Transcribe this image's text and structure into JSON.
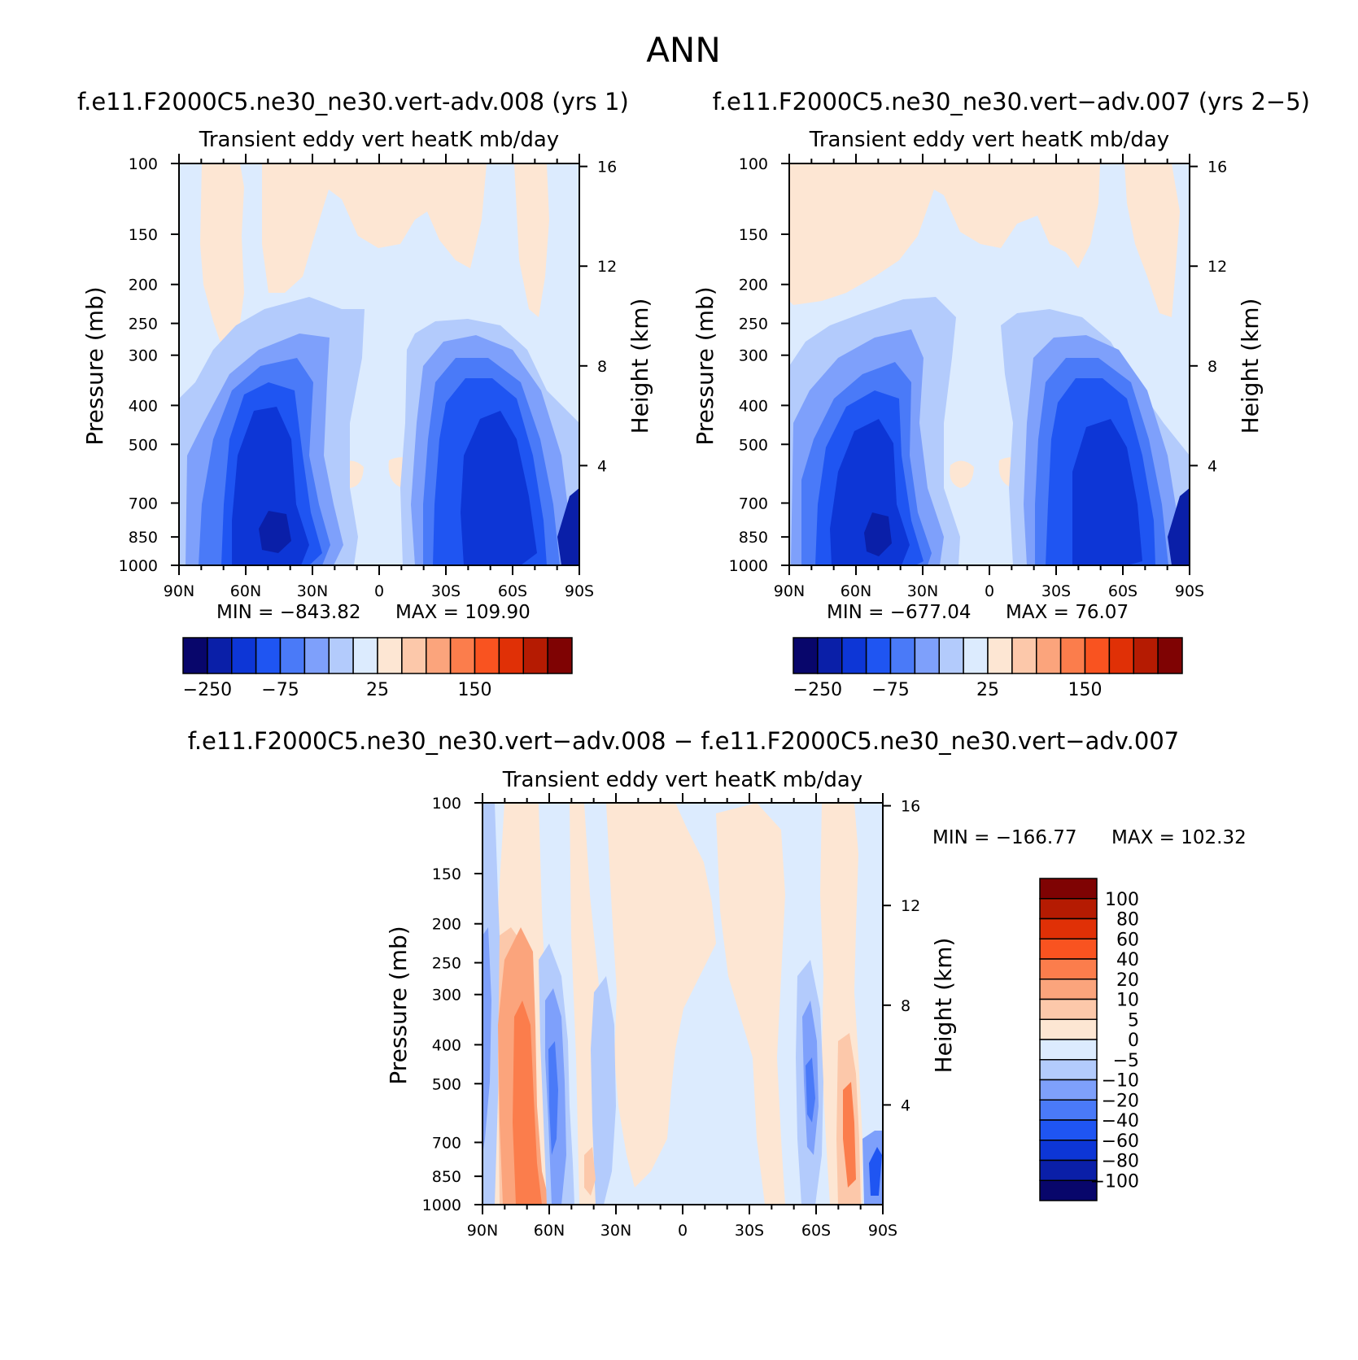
{
  "chart_data": [
    {
      "id": "panel1",
      "type": "heatmap",
      "subtype": "filled-contour (latitude-pressure cross section)",
      "title": "f.e11.F2000C5.ne30_ne30.vert-adv.008 (yrs 1)",
      "subtitle": "Transient eddy vert heatK mb/day",
      "ylabel": "Pressure (mb)",
      "y2label": "Height (km)",
      "x_ticks": [
        "90N",
        "60N",
        "30N",
        "0",
        "30S",
        "60S",
        "90S"
      ],
      "y_ticks": [
        "100",
        "150",
        "200",
        "250",
        "300",
        "400",
        "500",
        "700",
        "850",
        "1000"
      ],
      "y2_ticks": [
        "16",
        "12",
        "8",
        "4"
      ],
      "min_label": "MIN =  −843.82",
      "max_label": "MAX =  109.90",
      "colorbar_ticks": [
        "−250",
        "−75",
        "25",
        "150"
      ],
      "colorbar_colors": [
        "#08066b",
        "#0a1fa8",
        "#0d36d6",
        "#1f55f2",
        "#4a7af8",
        "#7ea0fb",
        "#b3cbfc",
        "#dcebfe",
        "#fde6d3",
        "#fcc8aa",
        "#fba47c",
        "#fb7d4c",
        "#f95320",
        "#e03006",
        "#b51b02",
        "#7f0303"
      ]
    },
    {
      "id": "panel2",
      "type": "heatmap",
      "subtype": "filled-contour (latitude-pressure cross section)",
      "title": "f.e11.F2000C5.ne30_ne30.vert−adv.007 (yrs 2−5)",
      "subtitle": "Transient eddy vert heatK mb/day",
      "ylabel": "Pressure (mb)",
      "y2label": "Height (km)",
      "x_ticks": [
        "90N",
        "60N",
        "30N",
        "0",
        "30S",
        "60S",
        "90S"
      ],
      "y_ticks": [
        "100",
        "150",
        "200",
        "250",
        "300",
        "400",
        "500",
        "700",
        "850",
        "1000"
      ],
      "y2_ticks": [
        "16",
        "12",
        "8",
        "4"
      ],
      "min_label": "MIN =  −677.04",
      "max_label": "MAX =   76.07",
      "colorbar_ticks": [
        "−250",
        "−75",
        "25",
        "150"
      ],
      "colorbar_colors": [
        "#08066b",
        "#0a1fa8",
        "#0d36d6",
        "#1f55f2",
        "#4a7af8",
        "#7ea0fb",
        "#b3cbfc",
        "#dcebfe",
        "#fde6d3",
        "#fcc8aa",
        "#fba47c",
        "#fb7d4c",
        "#f95320",
        "#e03006",
        "#b51b02",
        "#7f0303"
      ]
    },
    {
      "id": "panel3",
      "type": "heatmap",
      "subtype": "filled-contour difference (latitude-pressure cross section)",
      "title": "f.e11.F2000C5.ne30_ne30.vert−adv.008 − f.e11.F2000C5.ne30_ne30.vert−adv.007",
      "subtitle": "Transient eddy vert heatK mb/day",
      "ylabel": "Pressure (mb)",
      "y2label": "Height (km)",
      "x_ticks": [
        "90N",
        "60N",
        "30N",
        "0",
        "30S",
        "60S",
        "90S"
      ],
      "y_ticks": [
        "100",
        "150",
        "200",
        "250",
        "300",
        "400",
        "500",
        "700",
        "850",
        "1000"
      ],
      "y2_ticks": [
        "16",
        "12",
        "8",
        "4"
      ],
      "min_label": "MIN =  −166.77",
      "max_label": "MAX =  102.32",
      "colorbar_levels": [
        "100",
        "80",
        "60",
        "40",
        "20",
        "10",
        "5",
        "0",
        "−5",
        "−10",
        "−20",
        "−40",
        "−60",
        "−80",
        "−100"
      ],
      "colorbar_colors": [
        "#7f0303",
        "#b51b02",
        "#e03006",
        "#f95320",
        "#fb7d4c",
        "#fba47c",
        "#fcc8aa",
        "#fde6d3",
        "#dcebfe",
        "#b3cbfc",
        "#7ea0fb",
        "#4a7af8",
        "#1f55f2",
        "#0d36d6",
        "#0a1fa8",
        "#08066b"
      ]
    }
  ],
  "figure_title": "ANN"
}
